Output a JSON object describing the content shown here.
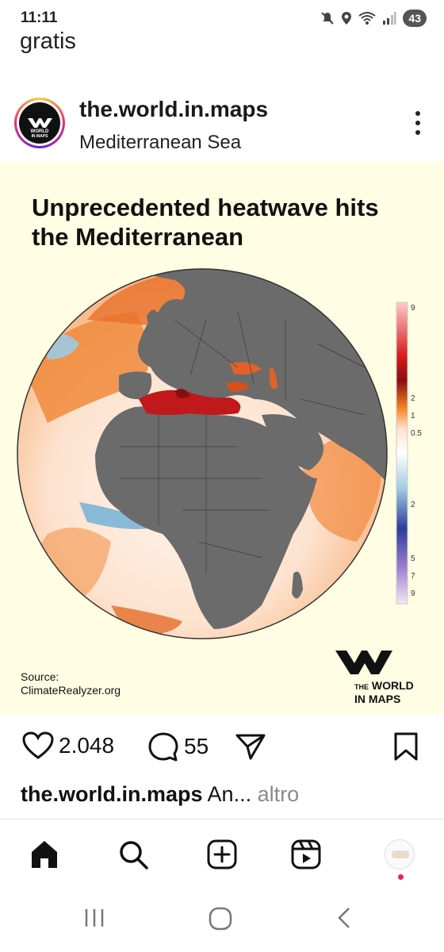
{
  "status_bar": {
    "time": "11:11",
    "battery": "43",
    "icons": [
      "mute-icon",
      "location-icon",
      "wifi-icon",
      "signal-icon"
    ]
  },
  "top_bar": {
    "title": "gratis"
  },
  "post": {
    "username": "the.world.in.maps",
    "location": "Mediterranean Sea",
    "image": {
      "headline": "Unprecedented heatwave hits the Mediterranean",
      "legend_ticks": [
        "9",
        "2",
        "1",
        "0.5",
        "2",
        "5",
        "7",
        "9"
      ],
      "legend_colors": {
        "hot_max": "#ffc9c9",
        "hot": "#d7191c",
        "warm": "#f58220",
        "neutral": "#ffffff",
        "cool": "#9ecae1",
        "cold": "#2c3c9c",
        "cold_max": "#d9c6ea"
      },
      "land_color": "#6b6b6b",
      "background_color": "#fffde3",
      "source_label": "Source:",
      "source_value": "ClimateRealyzer.org",
      "logo_text_small": "THE",
      "logo_text_line1": "WORLD",
      "logo_text_line2": "IN MAPS"
    },
    "likes": "2.048",
    "comments": "55",
    "caption_user": "the.world.in.maps",
    "caption_text": " An",
    "caption_ellipsis": "...",
    "caption_more": " altro"
  },
  "bottom_nav": {
    "items": [
      "home-icon",
      "search-icon",
      "create-icon",
      "reels-icon",
      "profile-avatar"
    ]
  },
  "system_nav": {
    "items": [
      "recent-apps-icon",
      "home-circle-icon",
      "back-icon"
    ]
  }
}
